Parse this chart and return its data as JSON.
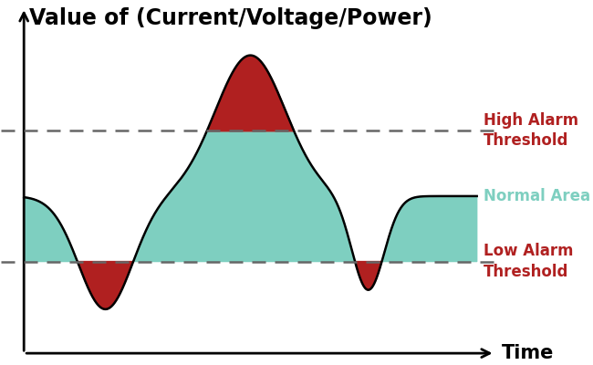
{
  "title": "Value of (Current/Voltage/Power)",
  "xlabel": "Time",
  "high_threshold": 0.52,
  "low_threshold": -0.52,
  "high_label": "High Alarm\nThreshold",
  "low_label": "Low Alarm\nThreshold",
  "normal_label": "Normal Area",
  "wave_color": "#000000",
  "fill_normal_color": "#7ECFC0",
  "fill_alarm_color": "#B02020",
  "background_color": "#ffffff",
  "title_fontsize": 17,
  "label_fontsize": 12,
  "axis_label_fontsize": 15
}
